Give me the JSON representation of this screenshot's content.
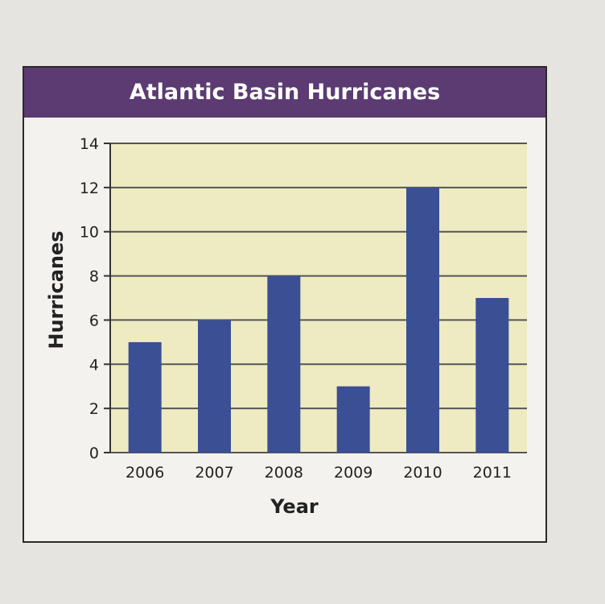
{
  "chart_data": {
    "type": "bar",
    "title": "Atlantic Basin Hurricanes",
    "xlabel": "Year",
    "ylabel": "Hurricanes",
    "categories": [
      "2006",
      "2007",
      "2008",
      "2009",
      "2010",
      "2011"
    ],
    "values": [
      5,
      6,
      8,
      3,
      12,
      7
    ],
    "ylim": [
      0,
      14
    ],
    "yticks": [
      0,
      2,
      4,
      6,
      8,
      10,
      12,
      14
    ],
    "grid": true,
    "colors": {
      "bar": "#3b4f94",
      "plot_bg": "#eeeac2",
      "title_bar": "#5b3b72"
    }
  }
}
